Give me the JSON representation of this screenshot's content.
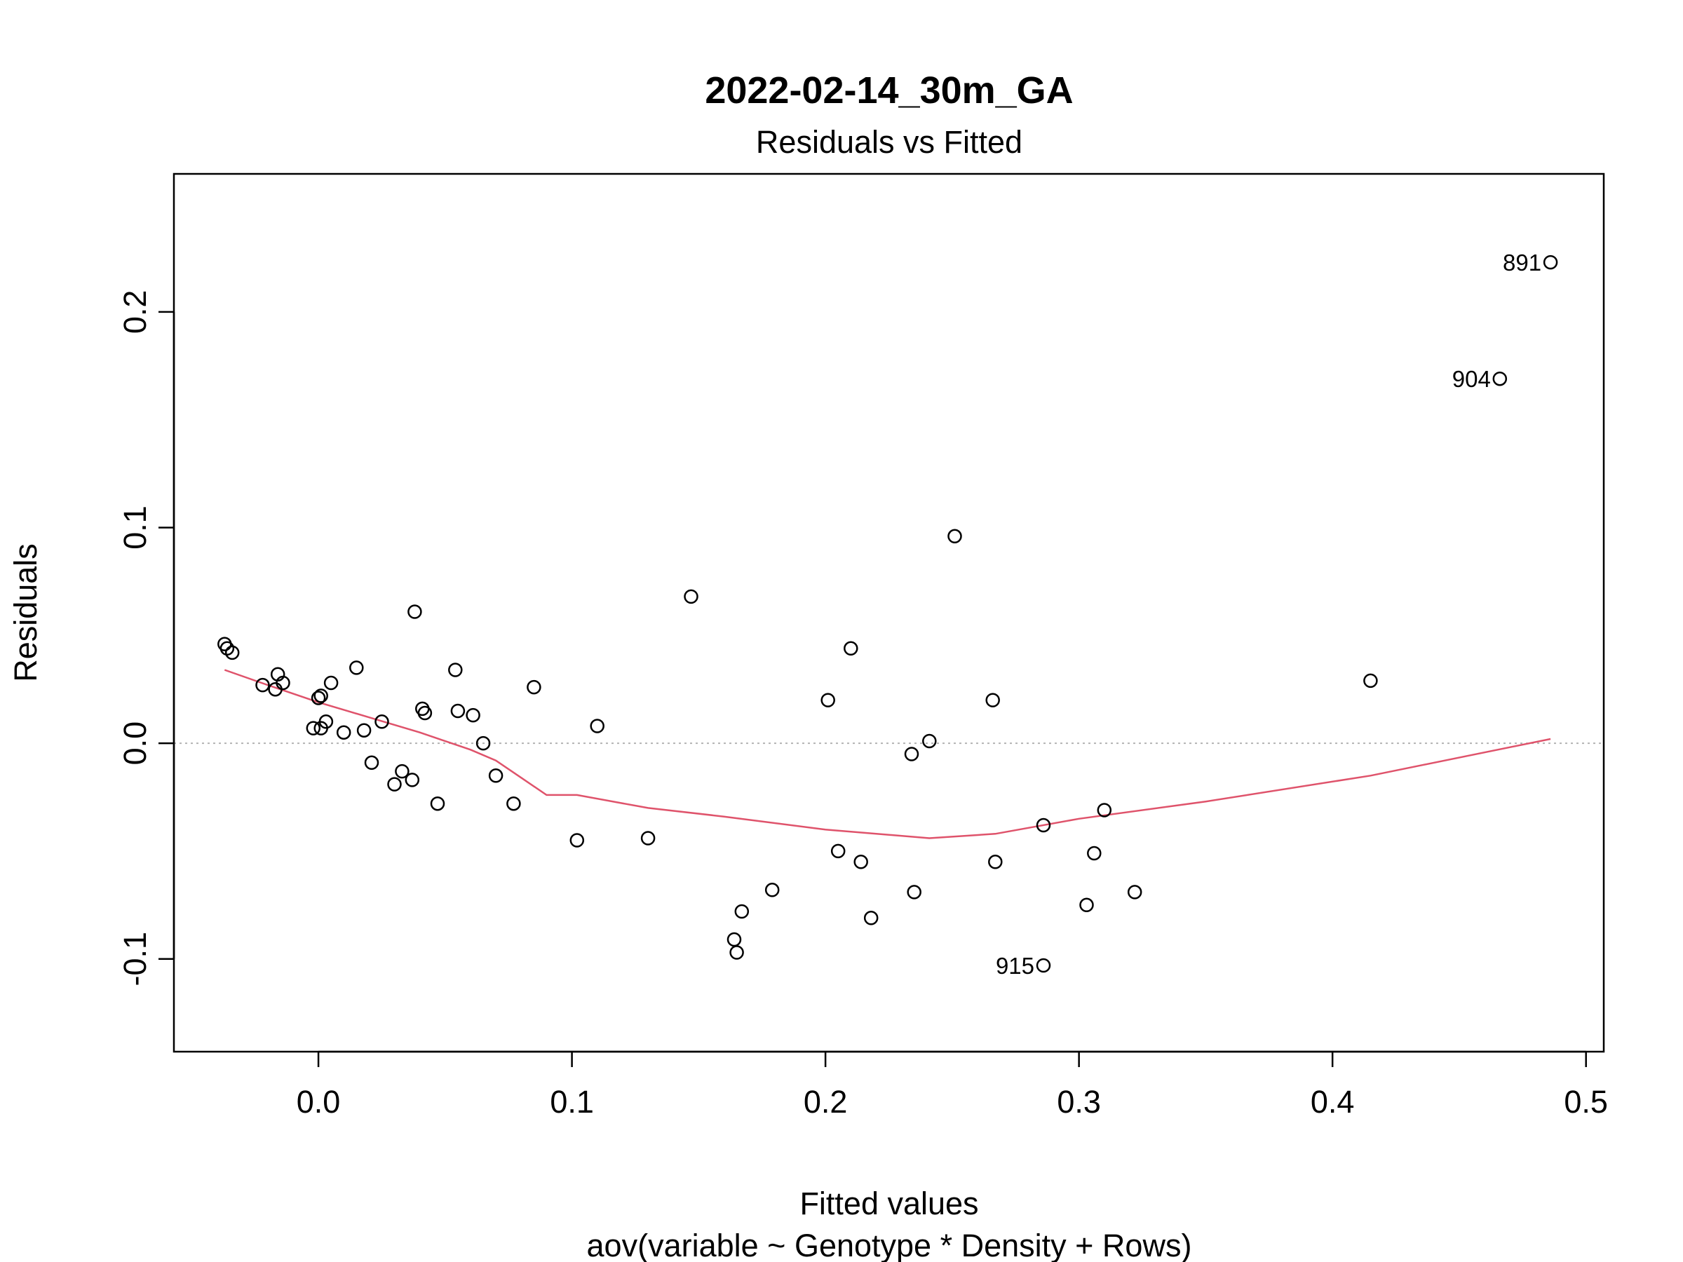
{
  "chart_data": {
    "type": "scatter",
    "title": "2022-02-14_30m_GA",
    "subtitle": "Residuals vs Fitted",
    "xlabel": "Fitted values",
    "xlabel2": "aov(variable ~ Genotype * Density + Rows)",
    "ylabel": "Residuals",
    "xlim": [
      -0.057,
      0.507
    ],
    "ylim": [
      -0.143,
      0.264
    ],
    "xticks": [
      0.0,
      0.1,
      0.2,
      0.3,
      0.4,
      0.5
    ],
    "xtick_labels": [
      "0.0",
      "0.1",
      "0.2",
      "0.3",
      "0.4",
      "0.5"
    ],
    "yticks": [
      -0.1,
      0.0,
      0.1,
      0.2
    ],
    "ytick_labels": [
      "-0.1",
      "0.0",
      "0.1",
      "0.2"
    ],
    "reference_line": {
      "y": 0,
      "style": "dotted",
      "color": "#b3b3b3"
    },
    "colors": {
      "points": "#000000",
      "smooth": "#DF536B",
      "frame": "#000000"
    },
    "grid": false,
    "points": [
      {
        "x": -0.037,
        "y": 0.046
      },
      {
        "x": -0.036,
        "y": 0.044
      },
      {
        "x": -0.034,
        "y": 0.042
      },
      {
        "x": -0.022,
        "y": 0.027
      },
      {
        "x": -0.017,
        "y": 0.025
      },
      {
        "x": -0.016,
        "y": 0.032
      },
      {
        "x": -0.014,
        "y": 0.028
      },
      {
        "x": -0.002,
        "y": 0.007
      },
      {
        "x": 0.0,
        "y": 0.021
      },
      {
        "x": 0.001,
        "y": 0.022
      },
      {
        "x": 0.001,
        "y": 0.007
      },
      {
        "x": 0.003,
        "y": 0.01
      },
      {
        "x": 0.005,
        "y": 0.028
      },
      {
        "x": 0.01,
        "y": 0.005
      },
      {
        "x": 0.015,
        "y": 0.035
      },
      {
        "x": 0.018,
        "y": 0.006
      },
      {
        "x": 0.021,
        "y": -0.009
      },
      {
        "x": 0.025,
        "y": 0.01
      },
      {
        "x": 0.03,
        "y": -0.019
      },
      {
        "x": 0.033,
        "y": -0.013
      },
      {
        "x": 0.037,
        "y": -0.017
      },
      {
        "x": 0.038,
        "y": 0.061
      },
      {
        "x": 0.041,
        "y": 0.016
      },
      {
        "x": 0.042,
        "y": 0.014
      },
      {
        "x": 0.047,
        "y": -0.028
      },
      {
        "x": 0.054,
        "y": 0.034
      },
      {
        "x": 0.055,
        "y": 0.015
      },
      {
        "x": 0.061,
        "y": 0.013
      },
      {
        "x": 0.065,
        "y": 0.0
      },
      {
        "x": 0.07,
        "y": -0.015
      },
      {
        "x": 0.077,
        "y": -0.028
      },
      {
        "x": 0.085,
        "y": 0.026
      },
      {
        "x": 0.102,
        "y": -0.045
      },
      {
        "x": 0.11,
        "y": 0.008
      },
      {
        "x": 0.13,
        "y": -0.044
      },
      {
        "x": 0.147,
        "y": 0.068
      },
      {
        "x": 0.164,
        "y": -0.091
      },
      {
        "x": 0.165,
        "y": -0.097
      },
      {
        "x": 0.167,
        "y": -0.078
      },
      {
        "x": 0.179,
        "y": -0.068
      },
      {
        "x": 0.201,
        "y": 0.02
      },
      {
        "x": 0.205,
        "y": -0.05
      },
      {
        "x": 0.21,
        "y": 0.044
      },
      {
        "x": 0.214,
        "y": -0.055
      },
      {
        "x": 0.218,
        "y": -0.081
      },
      {
        "x": 0.234,
        "y": -0.005
      },
      {
        "x": 0.235,
        "y": -0.069
      },
      {
        "x": 0.241,
        "y": 0.001
      },
      {
        "x": 0.251,
        "y": 0.096
      },
      {
        "x": 0.266,
        "y": 0.02
      },
      {
        "x": 0.267,
        "y": -0.055
      },
      {
        "x": 0.286,
        "y": -0.038
      },
      {
        "x": 0.286,
        "y": -0.103,
        "label": "915"
      },
      {
        "x": 0.303,
        "y": -0.075
      },
      {
        "x": 0.306,
        "y": -0.051
      },
      {
        "x": 0.31,
        "y": -0.031
      },
      {
        "x": 0.322,
        "y": -0.069
      },
      {
        "x": 0.415,
        "y": 0.029
      },
      {
        "x": 0.466,
        "y": 0.169,
        "label": "904"
      },
      {
        "x": 0.486,
        "y": 0.223,
        "label": "891"
      }
    ],
    "smooth_line": {
      "x": [
        -0.037,
        -0.02,
        0.0,
        0.02,
        0.04,
        0.06,
        0.07,
        0.08,
        0.09,
        0.102,
        0.13,
        0.16,
        0.2,
        0.241,
        0.267,
        0.3,
        0.35,
        0.415,
        0.486
      ],
      "y": [
        0.034,
        0.027,
        0.019,
        0.012,
        0.005,
        -0.003,
        -0.008,
        -0.016,
        -0.024,
        -0.024,
        -0.03,
        -0.034,
        -0.04,
        -0.044,
        -0.042,
        -0.035,
        -0.027,
        -0.015,
        0.002
      ]
    }
  }
}
